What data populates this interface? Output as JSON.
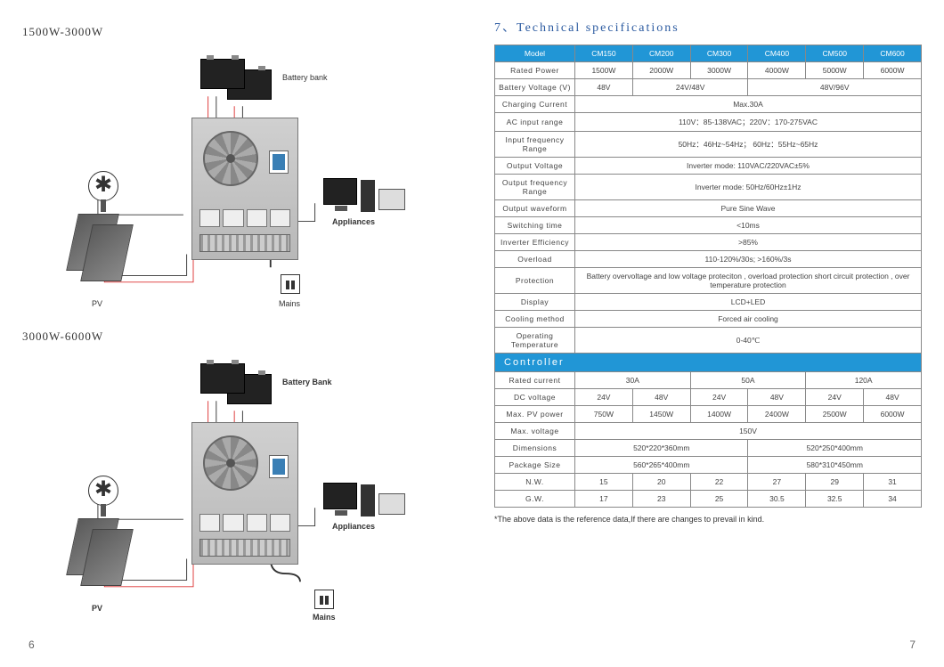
{
  "left": {
    "section1_title": "1500W-3000W",
    "section2_title": "3000W-6000W",
    "labels": {
      "battery_bank_1": "Battery bank",
      "battery_bank_2": "Battery Bank",
      "appliances": "Appliances",
      "pv": "PV",
      "mains": "Mains"
    },
    "page_num": "6"
  },
  "right": {
    "title": "7、Technical specifications",
    "page_num": "7",
    "footnote": "*The above data is the reference data,If there are changes to prevail in kind.",
    "table": {
      "header": [
        "Model",
        "CM150",
        "CM200",
        "CM300",
        "CM400",
        "CM500",
        "CM600"
      ],
      "rows": [
        {
          "label": "Rated Power",
          "cells": [
            "1500W",
            "2000W",
            "3000W",
            "4000W",
            "5000W",
            "6000W"
          ],
          "spans": [
            1,
            1,
            1,
            1,
            1,
            1
          ]
        },
        {
          "label": "Battery Voltage (V)",
          "cells": [
            "48V",
            "24V/48V",
            "48V/96V"
          ],
          "spans": [
            1,
            2,
            3
          ]
        },
        {
          "label": "Charging Current",
          "cells": [
            "Max.30A"
          ],
          "spans": [
            6
          ]
        },
        {
          "label": "AC input range",
          "cells": [
            "110V：85-138VAC；220V：170-275VAC"
          ],
          "spans": [
            6
          ]
        },
        {
          "label": "Input frequency Range",
          "cells": [
            "50Hz：46Hz~54Hz； 60Hz：55Hz~65Hz"
          ],
          "spans": [
            6
          ]
        },
        {
          "label": "Output Voltage",
          "cells": [
            "Inverter mode: 110VAC/220VAC±5%"
          ],
          "spans": [
            6
          ]
        },
        {
          "label": "Output frequency Range",
          "cells": [
            "Inverter mode: 50Hz/60Hz±1Hz"
          ],
          "spans": [
            6
          ]
        },
        {
          "label": "Output waveform",
          "cells": [
            "Pure Sine Wave"
          ],
          "spans": [
            6
          ]
        },
        {
          "label": "Switching time",
          "cells": [
            "<10ms"
          ],
          "spans": [
            6
          ]
        },
        {
          "label": "Inverter Efficiency",
          "cells": [
            ">85%"
          ],
          "spans": [
            6
          ]
        },
        {
          "label": "Overload",
          "cells": [
            "110-120%/30s; >160%/3s"
          ],
          "spans": [
            6
          ]
        },
        {
          "label": "Protection",
          "cells": [
            "Battery overvoltage and low voltage proteciton , overload protection short circuit protection , over temperature protection"
          ],
          "spans": [
            6
          ]
        },
        {
          "label": "Display",
          "cells": [
            "LCD+LED"
          ],
          "spans": [
            6
          ]
        },
        {
          "label": "Cooling method",
          "cells": [
            "Forced air cooling"
          ],
          "spans": [
            6
          ]
        },
        {
          "label": "Operating Temperature",
          "cells": [
            "0-40℃"
          ],
          "spans": [
            6
          ]
        }
      ],
      "controller_label": "Controller",
      "controller_rows": [
        {
          "label": "Rated current",
          "cells": [
            "30A",
            "50A",
            "120A"
          ],
          "spans": [
            2,
            2,
            2
          ]
        },
        {
          "label": "DC voltage",
          "cells": [
            "24V",
            "48V",
            "24V",
            "48V",
            "24V",
            "48V"
          ],
          "spans": [
            1,
            1,
            1,
            1,
            1,
            1
          ]
        },
        {
          "label": "Max. PV power",
          "cells": [
            "750W",
            "1450W",
            "1400W",
            "2400W",
            "2500W",
            "6000W"
          ],
          "spans": [
            1,
            1,
            1,
            1,
            1,
            1
          ]
        },
        {
          "label": "Max. voltage",
          "cells": [
            "150V"
          ],
          "spans": [
            6
          ]
        },
        {
          "label": "Dimensions",
          "cells": [
            "520*220*360mm",
            "520*250*400mm"
          ],
          "spans": [
            3,
            3
          ]
        },
        {
          "label": "Package Size",
          "cells": [
            "560*265*400mm",
            "580*310*450mm"
          ],
          "spans": [
            3,
            3
          ]
        },
        {
          "label": "N.W.",
          "cells": [
            "15",
            "20",
            "22",
            "27",
            "29",
            "31"
          ],
          "spans": [
            1,
            1,
            1,
            1,
            1,
            1
          ]
        },
        {
          "label": "G.W.",
          "cells": [
            "17",
            "23",
            "25",
            "30.5",
            "32.5",
            "34"
          ],
          "spans": [
            1,
            1,
            1,
            1,
            1,
            1
          ]
        }
      ]
    },
    "colors": {
      "header_bg": "#2196d6",
      "header_text": "#ffffff",
      "border": "#888888",
      "title": "#2b5aa0"
    }
  }
}
